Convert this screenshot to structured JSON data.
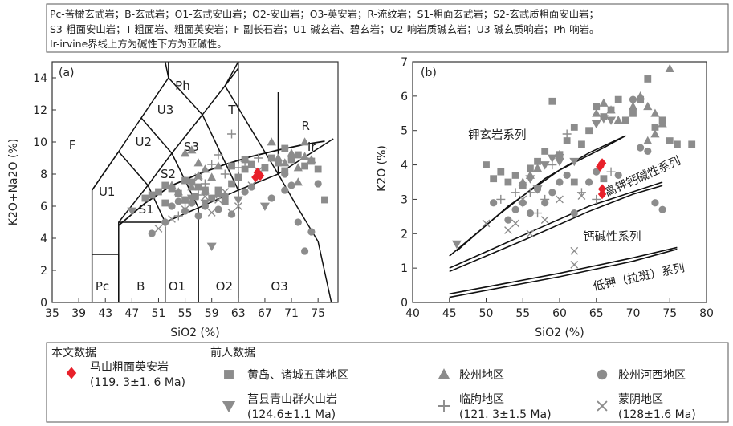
{
  "abbrev_legend": {
    "line1": "Pc-苦橄玄武岩；B-玄武岩；O1-玄武安山岩；O2-安山岩；O3-英安岩；R-流纹岩；S1-粗面玄武岩；S2-玄武质粗面安山岩；",
    "line2": "S3-粗面安山岩；T-粗面岩、粗面英安岩；F-副长石岩；U1-碱玄岩、碧玄岩；U2-响岩质碱玄岩；U3-碱玄质响岩；Ph-响岩。",
    "line3": "Ir-irvine界线上方为碱性下方为亚碱性。"
  },
  "field_labels_a": [
    "Ph",
    "U3",
    "T",
    "R",
    "Ir",
    "F",
    "U2",
    "S3",
    "S2",
    "U1",
    "S1",
    "Pc",
    "B",
    "O1",
    "O2",
    "O3"
  ],
  "series_labels_b": [
    "钾玄岩系列",
    "高钾钙碱性系列",
    "钙碱性系列",
    "低钾（拉斑）系列"
  ],
  "legend": {
    "this_study_title": "本文数据",
    "prev_title": "前人数据",
    "items": [
      {
        "key": "mashan",
        "line1": "马山粗面英安岩",
        "line2": "(119. 3±1. 6 Ma)"
      },
      {
        "key": "huangdao",
        "line1": "黄岛、诸城五莲地区",
        "line2": ""
      },
      {
        "key": "jiaozhou",
        "line1": "胶州地区",
        "line2": ""
      },
      {
        "key": "jiaozhou_hexi",
        "line1": "胶州河西地区",
        "line2": ""
      },
      {
        "key": "juxian",
        "line1": "莒县青山群火山岩",
        "line2": "(124.6±1.1 Ma)"
      },
      {
        "key": "linqu",
        "line1": "临朐地区",
        "line2": "(121. 3±1.5 Ma)"
      },
      {
        "key": "mengyin",
        "line1": "蒙阴地区",
        "line2": "(128±1.6 Ma)"
      }
    ]
  },
  "chart_data": [
    {
      "type": "scatter",
      "panel": "(a)",
      "title": "",
      "xlabel": "SiO2 (%)",
      "ylabel": "K2O+Na2O (%)",
      "xlim": [
        35,
        78
      ],
      "ylim": [
        0,
        15
      ],
      "xticks": [
        35,
        39,
        43,
        47,
        51,
        55,
        59,
        63,
        67,
        71,
        75
      ],
      "yticks": [
        0,
        2,
        4,
        6,
        8,
        10,
        12,
        14
      ],
      "series": [
        {
          "key": "mashan",
          "color": "#e8202a",
          "points": [
            [
              65.6,
              7.8
            ],
            [
              65.9,
              8.1
            ],
            [
              66.3,
              7.9
            ]
          ]
        },
        {
          "key": "huangdao",
          "color": "#8c8c8c",
          "points": [
            [
              49,
              6.5
            ],
            [
              50,
              6.7
            ],
            [
              51,
              6.9
            ],
            [
              52,
              6.2
            ],
            [
              53,
              7.1
            ],
            [
              54,
              6.8
            ],
            [
              55,
              6.4
            ],
            [
              56,
              7.5
            ],
            [
              56.5,
              6.6
            ],
            [
              57,
              7.2
            ],
            [
              58,
              6.9
            ],
            [
              59,
              6.5
            ],
            [
              60,
              7.0
            ],
            [
              61,
              6.3
            ],
            [
              62,
              7.4
            ],
            [
              63,
              7.8
            ],
            [
              64,
              8.3
            ],
            [
              65,
              8.6
            ],
            [
              66,
              8.0
            ],
            [
              67,
              8.4
            ],
            [
              68,
              9.0
            ],
            [
              69,
              8.7
            ],
            [
              70,
              8.2
            ],
            [
              71,
              8.9
            ],
            [
              72,
              9.2
            ],
            [
              73,
              8.5
            ],
            [
              74,
              8.8
            ],
            [
              75,
              8.3
            ],
            [
              76,
              6.4
            ],
            [
              52,
              7.3
            ],
            [
              55,
              7.6
            ],
            [
              58,
              7.0
            ],
            [
              60,
              6.8
            ],
            [
              62,
              8.5
            ],
            [
              64,
              8.9
            ],
            [
              70,
              9.6
            ]
          ]
        },
        {
          "key": "jiaozhou",
          "color": "#8c8c8c",
          "points": [
            [
              55,
              9.3
            ],
            [
              56,
              9.5
            ],
            [
              57,
              8.7
            ],
            [
              58,
              8.3
            ],
            [
              59,
              7.8
            ],
            [
              60,
              8.5
            ],
            [
              55,
              7.6
            ],
            [
              56,
              7.2
            ],
            [
              57,
              7.9
            ],
            [
              58,
              7.0
            ],
            [
              54,
              6.9
            ],
            [
              53,
              7.3
            ],
            [
              68,
              10.0
            ],
            [
              69,
              9.0
            ],
            [
              70,
              8.7
            ],
            [
              71,
              9.3
            ],
            [
              72,
              8.4
            ],
            [
              73,
              9.1
            ],
            [
              74,
              8.9
            ],
            [
              73,
              10.0
            ],
            [
              72,
              7.5
            ]
          ]
        },
        {
          "key": "jiaozhou_hexi",
          "color": "#8c8c8c",
          "points": [
            [
              50,
              4.3
            ],
            [
              52,
              5.0
            ],
            [
              53,
              6.0
            ],
            [
              54,
              6.3
            ],
            [
              55,
              5.7
            ],
            [
              56,
              6.2
            ],
            [
              57,
              5.4
            ],
            [
              58,
              6.0
            ],
            [
              60,
              5.8
            ],
            [
              61,
              6.6
            ],
            [
              62,
              5.5
            ],
            [
              64,
              6.9
            ],
            [
              65,
              7.2
            ],
            [
              68,
              6.5
            ],
            [
              70,
              7.0
            ],
            [
              71,
              7.3
            ],
            [
              72,
              5.0
            ],
            [
              73,
              3.2
            ],
            [
              74,
              4.4
            ],
            [
              70,
              8.0
            ],
            [
              75,
              7.4
            ]
          ]
        },
        {
          "key": "juxian",
          "color": "#8c8c8c",
          "points": [
            [
              47,
              5.7
            ],
            [
              59,
              3.5
            ],
            [
              63,
              6.4
            ],
            [
              67,
              6.0
            ],
            [
              56,
              6.5
            ],
            [
              58,
              6.2
            ]
          ]
        },
        {
          "key": "linqu",
          "color": "#8c8c8c",
          "points": [
            [
              52,
              5.0
            ],
            [
              54,
              5.4
            ],
            [
              55,
              6.2
            ],
            [
              57,
              6.7
            ],
            [
              58,
              7.4
            ],
            [
              59,
              8.6
            ],
            [
              60,
              9.2
            ],
            [
              61,
              8.0
            ],
            [
              62,
              10.5
            ],
            [
              63,
              8.4
            ],
            [
              64,
              8.8
            ],
            [
              66,
              9.0
            ]
          ]
        },
        {
          "key": "mengyin",
          "color": "#8c8c8c",
          "points": [
            [
              51,
              4.6
            ],
            [
              53,
              5.2
            ],
            [
              55,
              5.8
            ],
            [
              57,
              7.8
            ],
            [
              58,
              6.6
            ],
            [
              59,
              5.6
            ],
            [
              60,
              6.4
            ],
            [
              61,
              6.9
            ],
            [
              62,
              5.6
            ],
            [
              63,
              6.0
            ],
            [
              65,
              7.3
            ],
            [
              66,
              8.2
            ]
          ]
        }
      ]
    },
    {
      "type": "scatter",
      "panel": "(b)",
      "title": "",
      "xlabel": "SiO2 (%)",
      "ylabel": "K2O (%)",
      "xlim": [
        40,
        80
      ],
      "ylim": [
        0,
        7
      ],
      "xticks": [
        40,
        45,
        50,
        55,
        60,
        65,
        70,
        75,
        80
      ],
      "yticks": [
        0,
        1,
        2,
        3,
        4,
        5,
        6,
        7
      ],
      "series": [
        {
          "key": "mashan",
          "color": "#e8202a",
          "points": [
            [
              65.5,
              3.95
            ],
            [
              65.8,
              4.05
            ],
            [
              65.8,
              3.3
            ],
            [
              65.8,
              3.15
            ]
          ]
        },
        {
          "key": "huangdao",
          "color": "#8c8c8c",
          "points": [
            [
              50,
              4.0
            ],
            [
              51,
              3.6
            ],
            [
              52,
              3.8
            ],
            [
              53,
              3.5
            ],
            [
              54,
              3.7
            ],
            [
              55,
              3.4
            ],
            [
              56,
              3.9
            ],
            [
              57,
              4.1
            ],
            [
              58,
              4.4
            ],
            [
              59,
              5.85
            ],
            [
              60,
              4.3
            ],
            [
              61,
              4.7
            ],
            [
              62,
              5.1
            ],
            [
              63,
              4.6
            ],
            [
              64,
              5.0
            ],
            [
              65,
              5.7
            ],
            [
              66,
              5.4
            ],
            [
              67,
              5.6
            ],
            [
              68,
              5.9
            ],
            [
              69,
              5.3
            ],
            [
              70,
              5.5
            ],
            [
              71,
              5.9
            ],
            [
              72,
              6.5
            ],
            [
              73,
              5.1
            ],
            [
              74,
              5.3
            ],
            [
              75,
              4.7
            ],
            [
              76,
              4.6
            ],
            [
              78,
              4.6
            ],
            [
              62,
              3.5
            ],
            [
              66,
              3.6
            ]
          ]
        },
        {
          "key": "jiaozhou",
          "color": "#8c8c8c",
          "points": [
            [
              55,
              3.5
            ],
            [
              56,
              3.7
            ],
            [
              57,
              3.9
            ],
            [
              65,
              5.5
            ],
            [
              66,
              5.8
            ],
            [
              67,
              5.6
            ],
            [
              68,
              5.3
            ],
            [
              70,
              5.7
            ],
            [
              71,
              6.0
            ],
            [
              72,
              5.7
            ],
            [
              73,
              5.5
            ],
            [
              74,
              5.2
            ],
            [
              75,
              6.8
            ],
            [
              73,
              4.9
            ],
            [
              72,
              4.7
            ]
          ]
        },
        {
          "key": "jiaozhou_hexi",
          "color": "#8c8c8c",
          "points": [
            [
              51,
              2.9
            ],
            [
              53,
              2.4
            ],
            [
              54,
              2.7
            ],
            [
              55,
              2.9
            ],
            [
              56,
              2.6
            ],
            [
              57,
              3.3
            ],
            [
              58,
              2.9
            ],
            [
              59,
              3.2
            ],
            [
              60,
              3.5
            ],
            [
              61,
              3.7
            ],
            [
              62,
              2.6
            ],
            [
              64,
              3.5
            ],
            [
              65,
              3.8
            ],
            [
              68,
              3.7
            ],
            [
              70,
              5.9
            ],
            [
              71,
              4.5
            ],
            [
              72,
              4.4
            ],
            [
              73,
              2.9
            ],
            [
              74,
              2.7
            ]
          ]
        },
        {
          "key": "juxian",
          "color": "#8c8c8c",
          "points": [
            [
              46,
              1.7
            ],
            [
              56,
              3.6
            ],
            [
              57,
              3.3
            ],
            [
              58,
              4.0
            ],
            [
              59,
              4.2
            ],
            [
              60,
              4.1
            ],
            [
              62,
              4.1
            ],
            [
              65,
              5.2
            ],
            [
              66,
              5.35
            ],
            [
              67,
              5.3
            ]
          ]
        },
        {
          "key": "linqu",
          "color": "#8c8c8c",
          "points": [
            [
              52,
              3.0
            ],
            [
              54,
              3.2
            ],
            [
              55,
              2.9
            ],
            [
              56,
              3.2
            ],
            [
              57,
              2.6
            ],
            [
              58,
              3.0
            ],
            [
              59,
              4.0
            ],
            [
              60,
              4.3
            ],
            [
              61,
              4.9
            ],
            [
              63,
              3.2
            ],
            [
              65,
              3.0
            ],
            [
              67,
              3.8
            ]
          ]
        },
        {
          "key": "mengyin",
          "color": "#8c8c8c",
          "points": [
            [
              50,
              2.3
            ],
            [
              53,
              2.1
            ],
            [
              54,
              2.3
            ],
            [
              55,
              3.0
            ],
            [
              56,
              2.0
            ],
            [
              58,
              2.4
            ],
            [
              60,
              3.0
            ],
            [
              62,
              1.5
            ],
            [
              62,
              1.1
            ],
            [
              63,
              3.1
            ]
          ]
        }
      ]
    }
  ]
}
